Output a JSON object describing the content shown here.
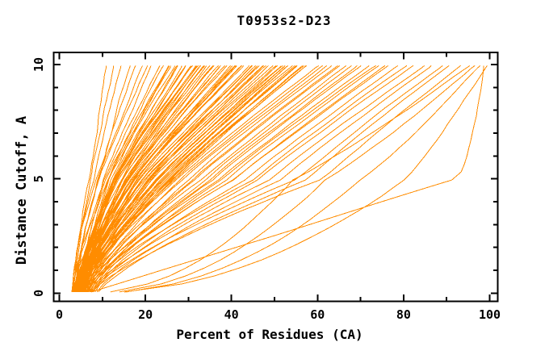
{
  "chart_data": {
    "type": "line",
    "title": "T0953s2-D23",
    "xlabel": "Percent of Residues (CA)",
    "ylabel": "Distance Cutoff, A",
    "xlim": [
      0,
      100
    ],
    "ylim": [
      0,
      10
    ],
    "grid": false,
    "legend": "none",
    "background": "#ffffff",
    "axis_color": "#000000",
    "line_color": "#ff8c00",
    "x_axis": {
      "major": [
        0,
        20,
        40,
        60,
        80,
        100
      ],
      "labels": [
        "0",
        "20",
        "40",
        "60",
        "80",
        "100"
      ],
      "minor": [
        10,
        30,
        50,
        70,
        90
      ]
    },
    "y_axis": {
      "major": [
        0,
        5,
        10
      ],
      "labels": [
        "0",
        "5",
        "10"
      ],
      "minor": [
        1,
        2,
        3,
        4,
        6,
        7,
        8,
        9
      ]
    },
    "cutoff_range": [
      0.05,
      9.95
    ],
    "series_encoding": "one curve per predicted model: [percent_at_0A, percent_at_5A, percent_at_10A, shape_class]",
    "shape_exponents": {
      "0": [
        1.3,
        1.05
      ],
      "1": [
        0.5,
        0.9
      ],
      "2": [
        1.0,
        0.55
      ]
    },
    "series": [
      [
        3.0,
        6.8,
        10.5,
        0
      ],
      [
        3.1,
        7.4,
        12.5,
        0
      ],
      [
        3.0,
        8.2,
        14.5,
        0
      ],
      [
        3.4,
        8.8,
        16.0,
        0
      ],
      [
        3.2,
        8.5,
        18,
        0
      ],
      [
        4.0,
        9.0,
        20,
        0
      ],
      [
        3.5,
        9.6,
        21,
        0
      ],
      [
        4.4,
        10.2,
        22,
        0
      ],
      [
        2.8,
        10.0,
        23,
        0
      ],
      [
        5.0,
        11.5,
        24,
        0
      ],
      [
        3.8,
        10.8,
        25,
        0
      ],
      [
        4.6,
        12.0,
        25.5,
        0
      ],
      [
        3.0,
        11.2,
        26,
        0
      ],
      [
        5.4,
        12.6,
        27,
        0
      ],
      [
        4.2,
        11.8,
        27.5,
        0
      ],
      [
        3.6,
        12.4,
        28,
        0
      ],
      [
        4.8,
        13.0,
        29,
        0
      ],
      [
        3.3,
        12.2,
        29.5,
        0
      ],
      [
        5.2,
        13.6,
        30,
        0
      ],
      [
        4.0,
        12.8,
        30.5,
        0
      ],
      [
        3.7,
        13.4,
        31,
        0
      ],
      [
        5.6,
        14.2,
        31.5,
        0
      ],
      [
        4.4,
        13.0,
        32,
        0
      ],
      [
        3.1,
        13.8,
        32.5,
        0
      ],
      [
        4.9,
        14.6,
        33,
        0
      ],
      [
        3.9,
        14.0,
        33.5,
        0
      ],
      [
        5.8,
        15.2,
        34,
        0
      ],
      [
        4.3,
        14.4,
        34.5,
        0
      ],
      [
        3.4,
        14.8,
        35,
        0
      ],
      [
        5.1,
        15.6,
        35.5,
        0
      ],
      [
        4.6,
        15.0,
        36,
        0
      ],
      [
        3.8,
        15.8,
        36.5,
        0
      ],
      [
        5.5,
        16.4,
        37,
        0
      ],
      [
        4.1,
        15.4,
        37.5,
        0
      ],
      [
        3.2,
        16.0,
        38,
        0
      ],
      [
        5.0,
        16.8,
        38.5,
        0
      ],
      [
        4.5,
        16.2,
        39,
        0
      ],
      [
        3.6,
        17.0,
        39.5,
        0
      ],
      [
        5.9,
        17.6,
        40,
        0
      ],
      [
        4.2,
        16.6,
        40.5,
        0
      ],
      [
        3.5,
        17.2,
        41,
        0
      ],
      [
        5.3,
        18.0,
        41.5,
        0
      ],
      [
        4.7,
        17.4,
        42,
        0
      ],
      [
        3.9,
        18.2,
        42.5,
        0
      ],
      [
        5.7,
        18.8,
        43,
        0
      ],
      [
        4.4,
        18.0,
        43.5,
        0
      ],
      [
        3.3,
        18.6,
        44,
        0
      ],
      [
        5.2,
        19.4,
        44.5,
        0
      ],
      [
        4.8,
        19.0,
        45,
        0
      ],
      [
        4.0,
        19.8,
        45.5,
        0
      ],
      [
        6.0,
        20.4,
        46,
        0
      ],
      [
        4.5,
        19.6,
        46.5,
        0
      ],
      [
        3.7,
        20.2,
        47,
        0
      ],
      [
        5.4,
        21.0,
        47.5,
        0
      ],
      [
        4.9,
        20.6,
        48,
        0
      ],
      [
        4.1,
        21.2,
        48.5,
        0
      ],
      [
        6.2,
        21.8,
        49,
        0
      ],
      [
        4.6,
        21.4,
        50,
        0
      ],
      [
        3.8,
        22.0,
        50.5,
        0
      ],
      [
        5.6,
        22.8,
        51,
        0
      ],
      [
        5.0,
        22.4,
        51.5,
        0
      ],
      [
        4.2,
        23.0,
        52,
        0
      ],
      [
        6.4,
        23.6,
        52.5,
        0
      ],
      [
        4.7,
        23.2,
        53,
        0
      ],
      [
        3.9,
        24.0,
        53.5,
        0
      ],
      [
        5.8,
        24.6,
        54,
        0
      ],
      [
        5.1,
        24.2,
        54.5,
        0
      ],
      [
        4.3,
        25.0,
        55,
        0
      ],
      [
        6.6,
        25.6,
        55.5,
        0
      ],
      [
        4.8,
        25.2,
        56,
        0
      ],
      [
        4.0,
        26.0,
        56.5,
        0
      ],
      [
        6.0,
        26.6,
        57,
        0
      ],
      [
        5.2,
        26.2,
        57.5,
        0
      ],
      [
        4.4,
        27.0,
        58,
        0
      ],
      [
        5.0,
        27.5,
        60.5,
        0
      ],
      [
        6.3,
        28.5,
        61.5,
        0
      ],
      [
        4.6,
        29.5,
        62.5,
        0
      ],
      [
        7.0,
        30.5,
        63.5,
        0
      ],
      [
        5.4,
        31.0,
        64.5,
        0
      ],
      [
        6.6,
        32.0,
        65.5,
        0
      ],
      [
        4.9,
        33.0,
        66.5,
        0
      ],
      [
        7.4,
        34.0,
        68,
        0
      ],
      [
        5.7,
        35.0,
        69.5,
        0
      ],
      [
        6.9,
        36.5,
        71,
        0
      ],
      [
        5.2,
        37.5,
        72.5,
        0
      ],
      [
        7.7,
        38.5,
        74,
        0
      ],
      [
        6.1,
        39.5,
        75,
        0
      ],
      [
        5.5,
        40.5,
        75.5,
        0
      ],
      [
        6.5,
        41,
        77,
        0
      ],
      [
        7.8,
        43,
        79,
        0
      ],
      [
        5.9,
        45,
        81,
        0
      ],
      [
        8.2,
        47,
        83,
        0
      ],
      [
        6.7,
        49,
        85,
        0
      ],
      [
        8.6,
        52,
        87,
        0
      ],
      [
        7.1,
        55,
        89,
        0
      ],
      [
        9.0,
        58,
        91,
        0
      ],
      [
        7.5,
        61,
        93,
        0
      ],
      [
        7.0,
        55,
        96,
        1
      ],
      [
        8.5,
        62,
        97,
        1
      ],
      [
        6.5,
        92,
        98.8,
        2
      ],
      [
        9.5,
        70,
        98,
        1
      ],
      [
        8.0,
        80,
        99,
        1
      ]
    ]
  }
}
